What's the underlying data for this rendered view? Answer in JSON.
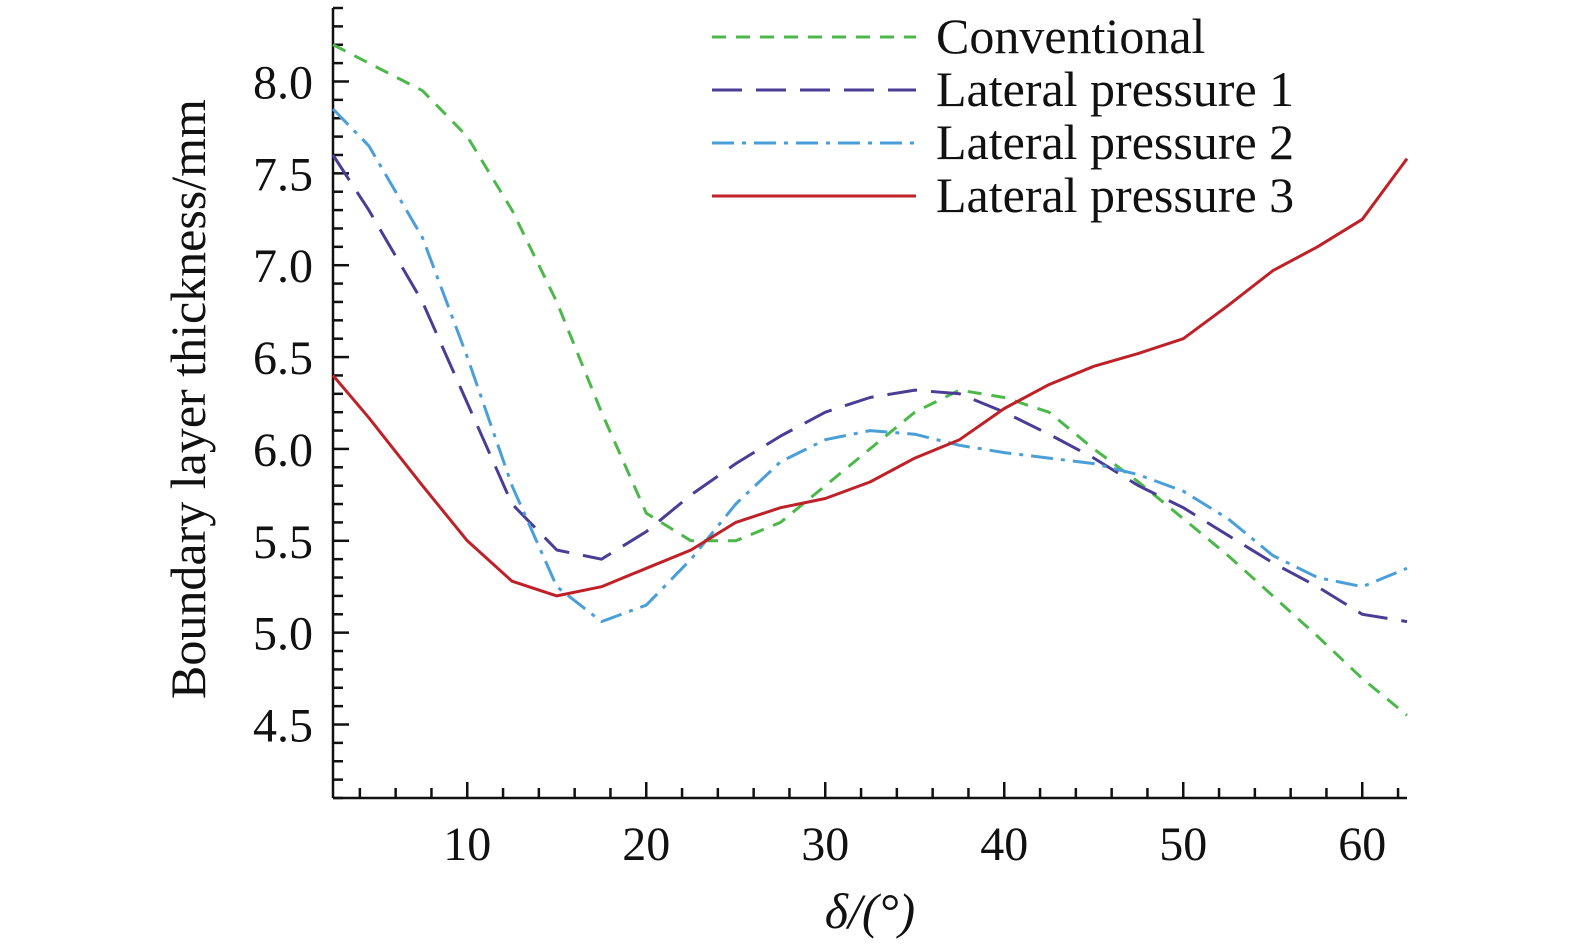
{
  "chart_data": {
    "type": "line",
    "title": "",
    "xlabel": "δ/(°)",
    "ylabel": "Boundary layer thickness/mm",
    "xlim": [
      2.5,
      62.5
    ],
    "ylim": [
      4.1,
      8.4
    ],
    "xticks": [
      {
        "value": 10,
        "label": "10"
      },
      {
        "value": 20,
        "label": "20"
      },
      {
        "value": 30,
        "label": "30"
      },
      {
        "value": 40,
        "label": "40"
      },
      {
        "value": 50,
        "label": "50"
      },
      {
        "value": 60,
        "label": "60"
      }
    ],
    "yticks": [
      {
        "value": 4.5,
        "label": "4.5"
      },
      {
        "value": 5.0,
        "label": "5.0"
      },
      {
        "value": 5.5,
        "label": "5.5"
      },
      {
        "value": 6.0,
        "label": "6.0"
      },
      {
        "value": 6.5,
        "label": "6.5"
      },
      {
        "value": 7.0,
        "label": "7.0"
      },
      {
        "value": 7.5,
        "label": "7.5"
      },
      {
        "value": 8.0,
        "label": "8.0"
      }
    ],
    "x_minor_step": 2,
    "y_minor_step": 0.1,
    "legend_position": "top-right",
    "grid": false,
    "series": [
      {
        "name": "Conventional",
        "color": "#4cb84a",
        "dash": "short-dash",
        "x": [
          2.5,
          4.5,
          7.5,
          10,
          12.5,
          15,
          17.5,
          20,
          22.5,
          25,
          27.5,
          30,
          32.5,
          35,
          37.5,
          40,
          42.5,
          45,
          47.5,
          50,
          52.5,
          55,
          57.5,
          60,
          62.5
        ],
        "y": [
          8.2,
          8.1,
          7.95,
          7.7,
          7.3,
          6.8,
          6.2,
          5.65,
          5.5,
          5.5,
          5.6,
          5.8,
          6.0,
          6.2,
          6.32,
          6.28,
          6.2,
          6.0,
          5.82,
          5.62,
          5.42,
          5.2,
          4.98,
          4.75,
          4.55
        ]
      },
      {
        "name": "Lateral pressure 1",
        "color": "#4a3d96",
        "dash": "long-dash",
        "x": [
          2.5,
          4.5,
          7.5,
          10,
          12.5,
          15,
          17.5,
          20,
          22.5,
          25,
          27.5,
          30,
          32.5,
          35,
          37.5,
          40,
          42.5,
          45,
          47.5,
          50,
          52.5,
          55,
          57.5,
          60,
          62.5
        ],
        "y": [
          7.6,
          7.3,
          6.8,
          6.25,
          5.7,
          5.45,
          5.4,
          5.55,
          5.75,
          5.92,
          6.07,
          6.2,
          6.28,
          6.32,
          6.3,
          6.2,
          6.08,
          5.95,
          5.8,
          5.68,
          5.53,
          5.38,
          5.25,
          5.1,
          5.06
        ]
      },
      {
        "name": "Lateral pressure 2",
        "color": "#4a9fd8",
        "dash": "dash-dot",
        "x": [
          2.5,
          4.5,
          7.5,
          10,
          12.5,
          15,
          17.5,
          20,
          22.5,
          25,
          27.5,
          30,
          32.5,
          35,
          37.5,
          40,
          42.5,
          45,
          47.5,
          50,
          52.5,
          55,
          57.5,
          60,
          62.5
        ],
        "y": [
          7.85,
          7.65,
          7.15,
          6.5,
          5.8,
          5.25,
          5.06,
          5.15,
          5.4,
          5.7,
          5.93,
          6.05,
          6.1,
          6.08,
          6.02,
          5.98,
          5.95,
          5.92,
          5.86,
          5.77,
          5.62,
          5.42,
          5.3,
          5.25,
          5.35
        ]
      },
      {
        "name": "Lateral pressure 3",
        "color": "#be2128",
        "dash": "solid",
        "x": [
          2.5,
          4.5,
          7.5,
          10,
          12.5,
          15,
          17.5,
          20,
          22.5,
          25,
          27.5,
          30,
          32.5,
          35,
          37.5,
          40,
          42.5,
          45,
          47.5,
          50,
          52.5,
          55,
          57.5,
          60,
          62.5
        ],
        "y": [
          6.4,
          6.17,
          5.8,
          5.5,
          5.28,
          5.2,
          5.25,
          5.35,
          5.45,
          5.6,
          5.68,
          5.73,
          5.82,
          5.95,
          6.05,
          6.22,
          6.35,
          6.45,
          6.52,
          6.6,
          6.78,
          6.97,
          7.1,
          7.25,
          7.58
        ]
      }
    ]
  }
}
